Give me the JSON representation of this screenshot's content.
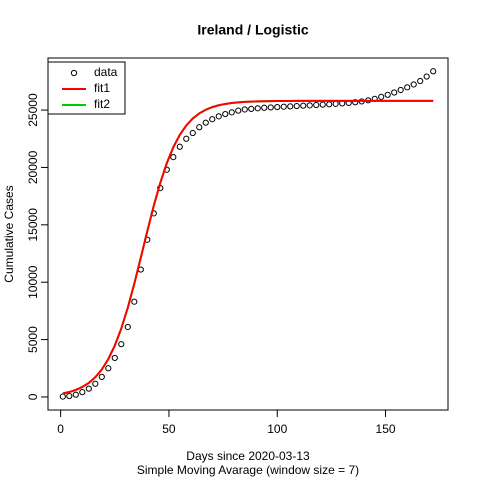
{
  "chart_data": {
    "type": "line",
    "title": "Ireland / Logistic",
    "x_label": "Days since 2020-03-13",
    "subtitle": "Simple Moving Avarage (window size = 7)",
    "y_label": "Cumulative Cases",
    "x": [
      1,
      4,
      7,
      10,
      13,
      16,
      19,
      22,
      25,
      28,
      31,
      34,
      37,
      40,
      43,
      46,
      49,
      52,
      55,
      58,
      61,
      64,
      67,
      70,
      73,
      76,
      79,
      82,
      85,
      88,
      91,
      94,
      97,
      100,
      103,
      106,
      109,
      112,
      115,
      118,
      121,
      124,
      127,
      130,
      133,
      136,
      139,
      142,
      145,
      148,
      151,
      154,
      157,
      160,
      163,
      166,
      169,
      172
    ],
    "series": [
      {
        "name": "fit2",
        "color": "#00cd00",
        "style": "lines",
        "draw_order": 1,
        "values": [
          300,
          430,
          610,
          866,
          1223,
          1720,
          2393,
          3299,
          4479,
          5972,
          7773,
          9862,
          12128,
          14437,
          16656,
          18655,
          20362,
          21754,
          22832,
          23655,
          24264,
          24708,
          25029,
          25257,
          25419,
          25532,
          25613,
          25669,
          25708,
          25735,
          25754,
          25768,
          25777,
          25784,
          25789,
          25792,
          25795,
          25797,
          25798,
          25799,
          25800,
          25800,
          25800,
          25800,
          25800,
          25800,
          25800,
          25800,
          25800,
          25800,
          25800,
          25800,
          25800,
          25800,
          25800,
          25800,
          25800,
          25800
        ]
      },
      {
        "name": "data",
        "color": "#000000",
        "style": "points",
        "draw_order": 2,
        "values": [
          30,
          80,
          200,
          420,
          720,
          1150,
          1750,
          2500,
          3400,
          4600,
          6100,
          8300,
          11100,
          13700,
          16000,
          18200,
          19800,
          20900,
          21800,
          22500,
          23000,
          23500,
          23900,
          24200,
          24450,
          24650,
          24800,
          24950,
          25050,
          25100,
          25150,
          25200,
          25230,
          25260,
          25290,
          25320,
          25350,
          25380,
          25410,
          25440,
          25470,
          25500,
          25540,
          25580,
          25620,
          25680,
          25750,
          25850,
          25980,
          26150,
          26330,
          26530,
          26750,
          26980,
          27230,
          27530,
          27920,
          28380
        ]
      },
      {
        "name": "fit1",
        "color": "#ff0000",
        "style": "lines",
        "draw_order": 3,
        "values": [
          300,
          430,
          610,
          866,
          1223,
          1720,
          2393,
          3299,
          4479,
          5972,
          7773,
          9862,
          12128,
          14437,
          16656,
          18655,
          20362,
          21754,
          22832,
          23655,
          24264,
          24708,
          25029,
          25257,
          25419,
          25532,
          25613,
          25669,
          25708,
          25735,
          25754,
          25768,
          25777,
          25784,
          25789,
          25792,
          25795,
          25797,
          25798,
          25799,
          25800,
          25800,
          25800,
          25800,
          25800,
          25800,
          25800,
          25800,
          25800,
          25800,
          25800,
          25800,
          25800,
          25800,
          25800,
          25800,
          25800,
          25800
        ]
      }
    ],
    "legend_order": [
      "data",
      "fit1",
      "fit2"
    ],
    "legend": "top-left",
    "xlim": [
      -5.84,
      178.84
    ],
    "ylim": [
      -1136,
      29536
    ],
    "xticks": [
      0,
      50,
      100,
      150
    ],
    "yticks": [
      0,
      5000,
      10000,
      15000,
      20000,
      25000
    ],
    "grid": false
  }
}
